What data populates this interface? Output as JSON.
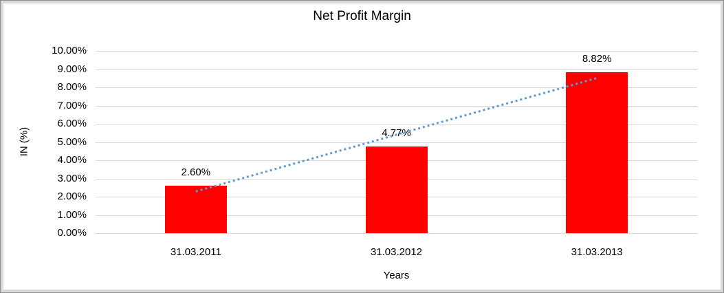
{
  "chart_data": {
    "type": "bar",
    "title": "Net Profit Margin",
    "xlabel": "Years",
    "ylabel": "IN (%)",
    "categories": [
      "31.03.2011",
      "31.03.2012",
      "31.03.2013"
    ],
    "values": [
      2.6,
      4.77,
      8.82
    ],
    "data_labels": [
      "2.60%",
      "4.77%",
      "8.82%"
    ],
    "y_ticks": [
      "0.00%",
      "1.00%",
      "2.00%",
      "3.00%",
      "4.00%",
      "5.00%",
      "6.00%",
      "7.00%",
      "8.00%",
      "9.00%",
      "10.00%"
    ],
    "y_tick_step": 1,
    "ylim": [
      0,
      10
    ],
    "grid": true,
    "legend": "none",
    "bar_color": "#FF0000",
    "gridline_color": "#D9D9D9",
    "trendline": {
      "type": "linear",
      "style": "dotted",
      "color": "#5B9BD5",
      "start_value": 2.29,
      "end_value": 8.51
    }
  }
}
